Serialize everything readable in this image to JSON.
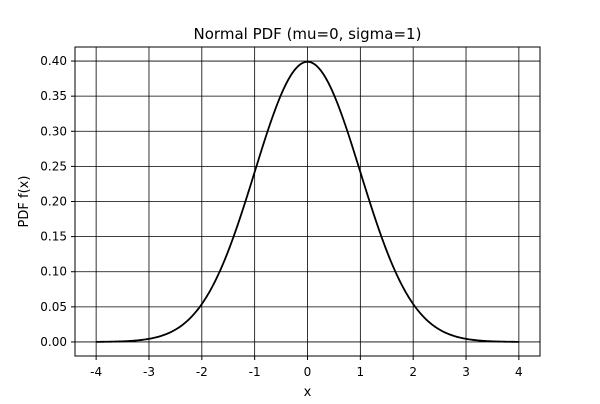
{
  "chart_data": {
    "type": "line",
    "title": "Normal PDF (mu=0, sigma=1)",
    "xlabel": "x",
    "ylabel": "PDF f(x)",
    "xlim": [
      -4.4,
      4.4
    ],
    "ylim": [
      -0.02,
      0.42
    ],
    "grid": true,
    "x_ticks": [
      -4,
      -3,
      -2,
      -1,
      0,
      1,
      2,
      3,
      4
    ],
    "x_tick_labels": [
      "-4",
      "-3",
      "-2",
      "-1",
      "0",
      "1",
      "2",
      "3",
      "4"
    ],
    "y_ticks": [
      0.0,
      0.05,
      0.1,
      0.15,
      0.2,
      0.25,
      0.3,
      0.35,
      0.4
    ],
    "y_tick_labels": [
      "0.00",
      "0.05",
      "0.10",
      "0.15",
      "0.20",
      "0.25",
      "0.30",
      "0.35",
      "0.40"
    ],
    "series": [
      {
        "name": "Normal PDF",
        "color": "#000000",
        "x": [
          -4.0,
          -3.8,
          -3.6,
          -3.4,
          -3.2,
          -3.0,
          -2.8,
          -2.6,
          -2.4,
          -2.2,
          -2.0,
          -1.8,
          -1.6,
          -1.4,
          -1.2,
          -1.0,
          -0.8,
          -0.6,
          -0.4,
          -0.2,
          0.0,
          0.2,
          0.4,
          0.6,
          0.8,
          1.0,
          1.2,
          1.4,
          1.6,
          1.8,
          2.0,
          2.2,
          2.4,
          2.6,
          2.8,
          3.0,
          3.2,
          3.4,
          3.6,
          3.8,
          4.0
        ],
        "values": [
          0.0001,
          0.0003,
          0.0006,
          0.0012,
          0.0024,
          0.0044,
          0.0079,
          0.0136,
          0.0224,
          0.0355,
          0.054,
          0.079,
          0.1109,
          0.1497,
          0.1942,
          0.242,
          0.2897,
          0.3332,
          0.3683,
          0.391,
          0.3989,
          0.391,
          0.3683,
          0.3332,
          0.2897,
          0.242,
          0.1942,
          0.1497,
          0.1109,
          0.079,
          0.054,
          0.0355,
          0.0224,
          0.0136,
          0.0079,
          0.0044,
          0.0024,
          0.0012,
          0.0006,
          0.0003,
          0.0001
        ]
      }
    ]
  }
}
